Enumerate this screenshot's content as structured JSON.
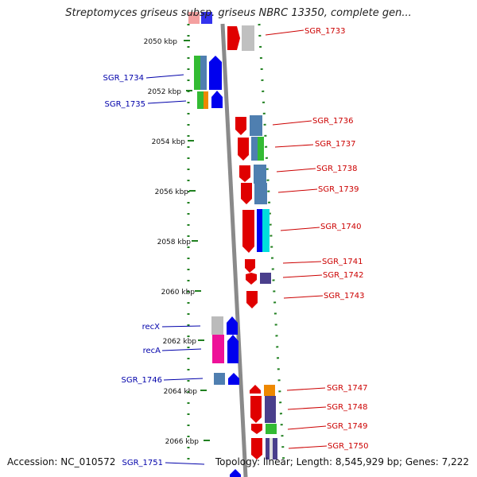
{
  "header": {
    "title": "Streptomyces griseus subsp. griseus NBRC 13350, complete gen..."
  },
  "footer": {
    "accession": "Accession: NC_010572",
    "summary": "Topology: linear; Length: 8,545,929 bp; Genes: 7,222"
  },
  "scale": {
    "ticks": [
      "2050 kbp",
      "2052 kbp",
      "2054 kbp",
      "2056 kbp",
      "2058 kbp",
      "2060 kbp",
      "2062 kbp",
      "2064 kbp",
      "2066 kbp"
    ]
  },
  "genes_right": [
    "SGR_1733",
    "SGR_1736",
    "SGR_1737",
    "SGR_1738",
    "SGR_1739",
    "SGR_1740",
    "SGR_1741",
    "SGR_1742",
    "SGR_1743",
    "SGR_1747",
    "SGR_1748",
    "SGR_1749",
    "SGR_1750"
  ],
  "genes_left": [
    "SGR_1734",
    "SGR_1735",
    "recX",
    "recA",
    "SGR_1746",
    "SGR_1751"
  ],
  "colors": {
    "forward_strand": "#e00000",
    "reverse_strand": "#0000ee",
    "right_label": "#cc0000",
    "left_label": "#0000aa",
    "tick": "#208020",
    "backbone": "#808080",
    "cog_steel": "#4f7fb0",
    "cog_green": "#33bb33",
    "cog_orange": "#ee8800",
    "cog_magenta": "#ee1199",
    "cog_gray": "#bbbbbb",
    "cog_cyan": "#00dddd",
    "cog_purple": "#4a3f8c"
  }
}
